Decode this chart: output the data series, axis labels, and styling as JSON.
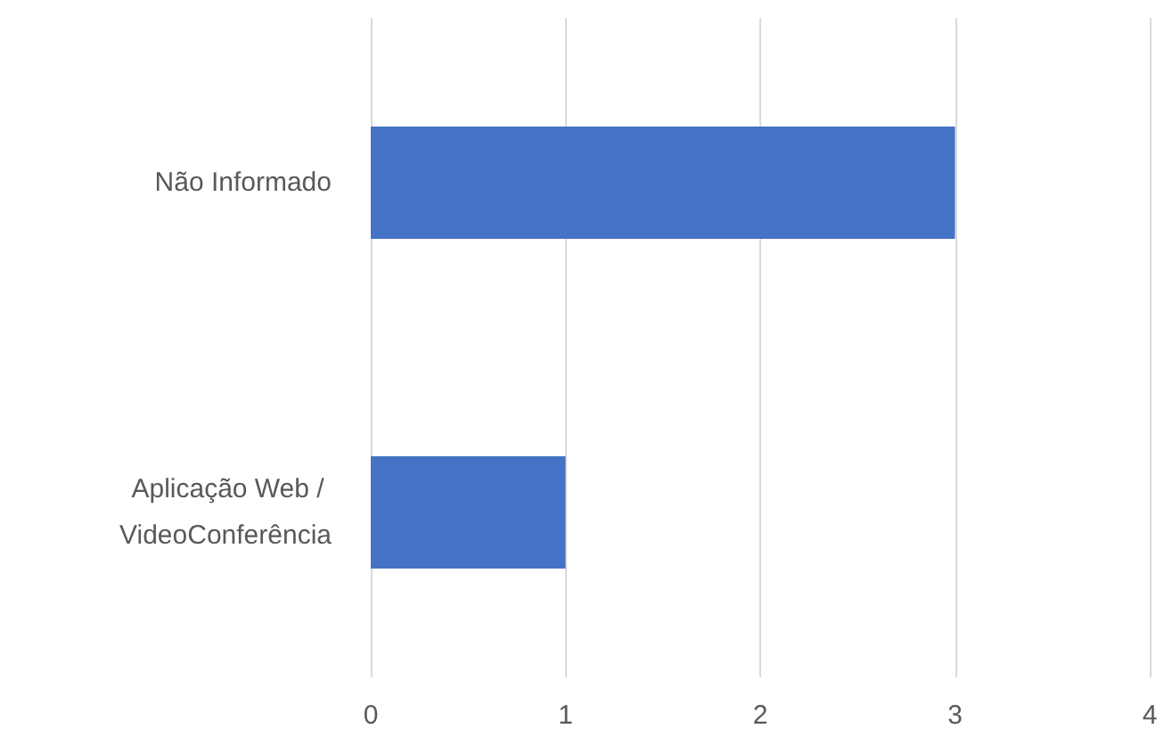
{
  "chart_data": {
    "type": "bar",
    "orientation": "horizontal",
    "categories": [
      "Não Informado",
      "Aplicação Web / VideoConferência"
    ],
    "values": [
      3,
      1
    ],
    "color": "#4472c4",
    "xlim": [
      0,
      4
    ],
    "xticks": [
      0,
      1,
      2,
      3,
      4
    ],
    "grid": "x"
  }
}
